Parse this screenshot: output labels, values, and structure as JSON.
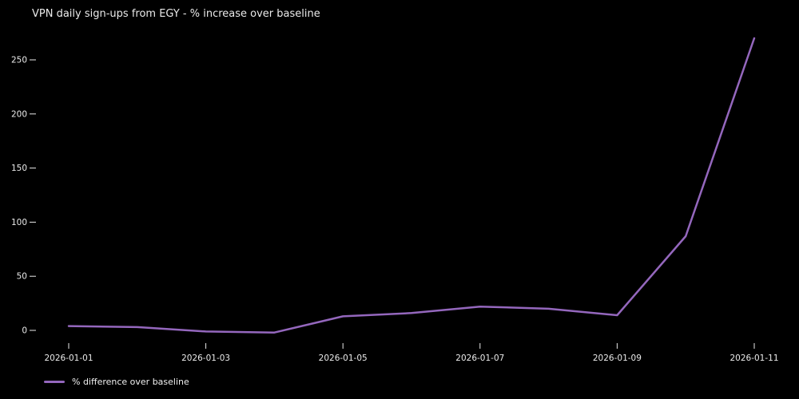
{
  "title": "VPN daily sign-ups from EGY - % increase over baseline",
  "legend": {
    "label": "% difference over baseline"
  },
  "colors": {
    "background": "#000000",
    "text": "#eaeaea",
    "line": "#9467bd"
  },
  "chart_data": {
    "type": "line",
    "title": "VPN daily sign-ups from EGY - % increase over baseline",
    "x": [
      "2026-01-01",
      "2026-01-02",
      "2026-01-03",
      "2026-01-04",
      "2026-01-05",
      "2026-01-06",
      "2026-01-07",
      "2026-01-08",
      "2026-01-09",
      "2026-01-10",
      "2026-01-11"
    ],
    "series": [
      {
        "name": "% difference over baseline",
        "color": "#9467bd",
        "values": [
          4,
          3,
          -1,
          -2,
          13,
          16,
          22,
          20,
          14,
          87,
          270
        ]
      }
    ],
    "x_tick_labels": [
      "2026-01-01",
      "2026-01-03",
      "2026-01-05",
      "2026-01-07",
      "2026-01-09",
      "2026-01-11"
    ],
    "x_tick_indices": [
      0,
      2,
      4,
      6,
      8,
      10
    ],
    "y_ticks": [
      0,
      50,
      100,
      150,
      200,
      250
    ],
    "xlabel": "",
    "ylabel": "",
    "ylim": [
      -10,
      275
    ],
    "grid": false,
    "legend_position": "lower-left-outside",
    "background": "black"
  }
}
